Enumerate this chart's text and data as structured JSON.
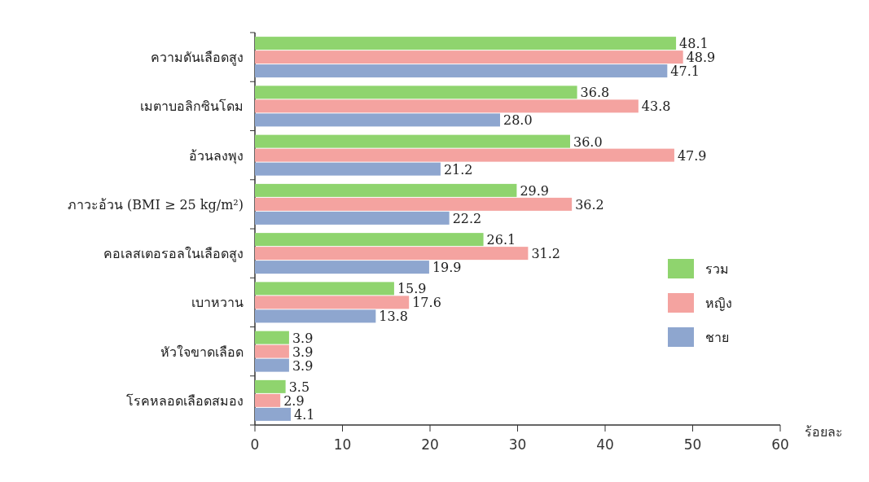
{
  "chart_data": {
    "type": "bar",
    "orientation": "horizontal",
    "xlabel": "ร้อยละ",
    "categories": [
      "ความดันเลือดสูง",
      "เมตาบอลิกซินโดม",
      "อ้วนลงพุง",
      "ภาวะอ้วน (BMI ≥ 25 kg/m²)",
      "คอเลสเตอรอลในเลือดสูง",
      "เบาหวาน",
      "หัวใจขาดเลือด",
      "โรคหลอดเลือดสมอง"
    ],
    "series": [
      {
        "name": "รวม",
        "color": "#8fd46e",
        "values": [
          48.1,
          36.8,
          36.0,
          29.9,
          26.1,
          15.9,
          3.9,
          3.5
        ],
        "value_labels": [
          "48.1",
          "36.8",
          "36.0",
          "29.9",
          "26.1",
          "15.9",
          "3.9",
          "3.5"
        ]
      },
      {
        "name": "หญิง",
        "color": "#f4a3a0",
        "values": [
          48.9,
          43.8,
          47.9,
          36.2,
          31.2,
          17.6,
          3.9,
          2.9
        ],
        "value_labels": [
          "48.9",
          "43.8",
          "47.9",
          "36.2",
          "31.2",
          "17.6",
          "3.9",
          "2.9"
        ]
      },
      {
        "name": "ชาย",
        "color": "#8ea6cf",
        "values": [
          47.1,
          28.0,
          21.2,
          22.2,
          19.9,
          13.8,
          3.9,
          4.1
        ],
        "value_labels": [
          "47.1",
          "28.0",
          "21.2",
          "22.2",
          "19.9",
          "13.8",
          "3.9",
          "4.1"
        ]
      }
    ],
    "xlim": [
      0,
      60
    ],
    "xticks": [
      0,
      10,
      20,
      30,
      40,
      50,
      60
    ],
    "legend": "right",
    "grid": false
  }
}
